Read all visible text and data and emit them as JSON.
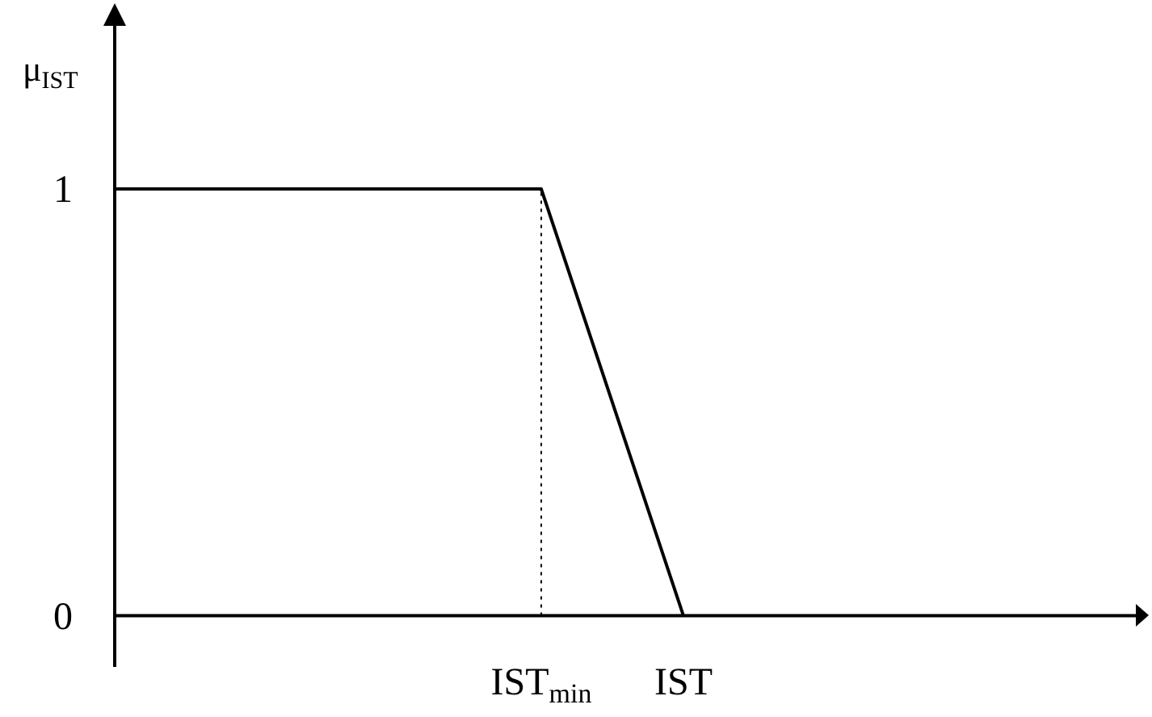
{
  "chart_data": {
    "type": "line",
    "ylabel": "μ$_{IST}$",
    "categories": [
      null,
      null,
      null,
      "IST$_{min}$",
      "IST",
      null,
      null,
      null
    ],
    "ylim": [
      -0.12,
      1.39
    ],
    "yticks": [
      0,
      1
    ],
    "marker": "none",
    "series": [
      {
        "color": "#000000",
        "values": [
          1,
          1,
          1,
          1,
          0,
          null,
          null,
          null
        ]
      }
    ],
    "ref_lines": [
      {
        "axis": "x",
        "value": "IST$_{min}$",
        "color": "#000000",
        "line_style": "dotted"
      }
    ]
  }
}
